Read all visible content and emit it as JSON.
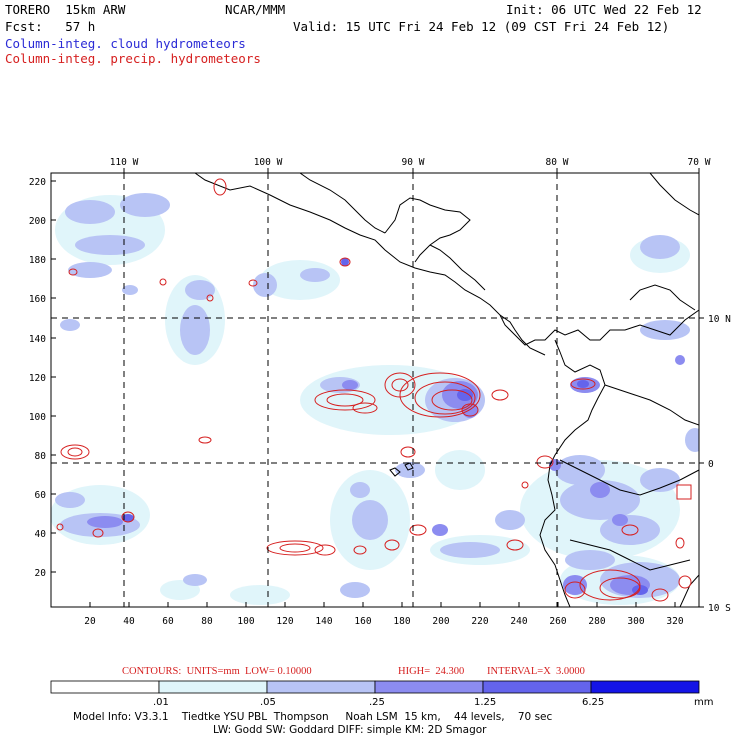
{
  "header": {
    "model": "TORERO  15km ARW",
    "org": "NCAR/MMM",
    "init": "Init: 06 UTC Wed 22 Feb 12",
    "fcst": "Fcst:   57 h",
    "valid": "Valid: 15 UTC Fri 24 Feb 12 (09 CST Fri 24 Feb 12)",
    "field1": "Column-integ. cloud hydrometeors",
    "field2": "Column-integ. precip. hydrometeors"
  },
  "colors": {
    "cloud": "#2b2bd6",
    "precip": "#d62020",
    "shade": [
      "#ffffff",
      "#e0f5fa",
      "#b8c4f5",
      "#8c8cf0",
      "#6464ec",
      "#3a3ae8",
      "#1414e6"
    ]
  },
  "axes": {
    "top": [
      "110 W",
      "100 W",
      "90 W",
      "80 W",
      "70 W"
    ],
    "right": [
      "10 N",
      "0",
      "10 S"
    ],
    "left": [
      "220",
      "200",
      "180",
      "160",
      "140",
      "120",
      "100",
      "80",
      "60",
      "40",
      "20"
    ],
    "bottom": [
      "20",
      "40",
      "60",
      "80",
      "100",
      "120",
      "140",
      "160",
      "180",
      "200",
      "220",
      "240",
      "260",
      "280",
      "300",
      "320"
    ]
  },
  "contours": {
    "label": "CONTOURS:  UNITS=mm  LOW= 0.10000",
    "high": "HIGH=  24.300",
    "interval": "INTERVAL=X  3.0000"
  },
  "colorbar": {
    "ticks": [
      ".01",
      ".05",
      ".25",
      "1.25",
      "6.25"
    ],
    "units": "mm"
  },
  "footer": {
    "line1": "Model Info: V3.3.1    Tiedtke YSU PBL  Thompson     Noah LSM  15 km,    44 levels,    70 sec",
    "line2": "LW: Godd SW: Goddard DIFF: simple KM: 2D Smagor"
  }
}
